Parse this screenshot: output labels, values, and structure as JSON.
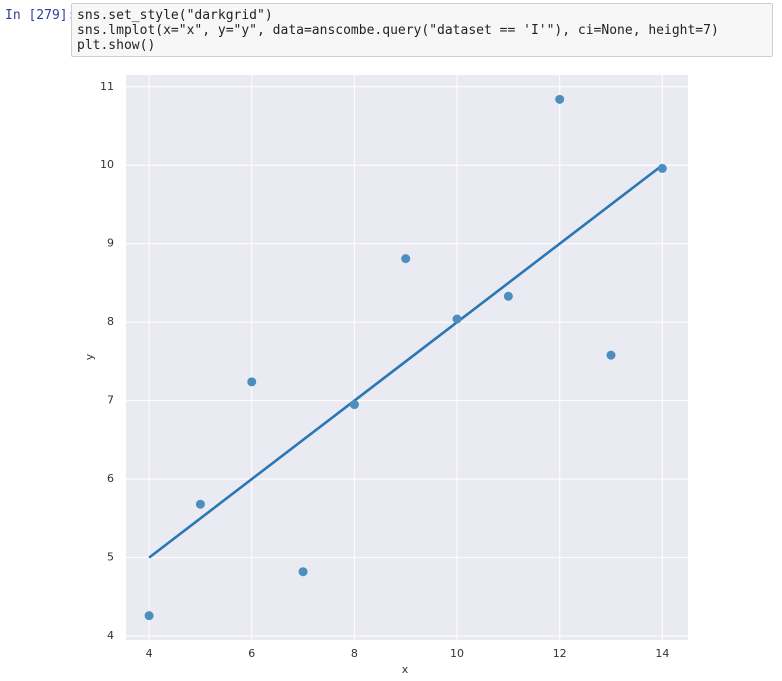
{
  "cell": {
    "prompt": "In [279]:",
    "code": [
      "sns.set_style(\"darkgrid\")",
      "sns.lmplot(x=\"x\", y=\"y\", data=anscombe.query(\"dataset == 'I'\"), ci=None, height=7)",
      "plt.show()"
    ]
  },
  "chart_data": {
    "type": "scatter",
    "x_label": "x",
    "y_label": "y",
    "x": [
      10,
      8,
      13,
      9,
      11,
      14,
      6,
      4,
      12,
      7,
      5
    ],
    "series": [
      {
        "color": "#4c8ec0",
        "values": [
          8.04,
          6.95,
          7.58,
          8.81,
          8.33,
          9.96,
          7.24,
          4.26,
          10.84,
          4.82,
          5.68
        ]
      }
    ],
    "fit": {
      "color": "#2a77b4",
      "x": [
        4,
        14
      ],
      "values": [
        5.0,
        10.0
      ]
    },
    "xlim": [
      3.55,
      14.5
    ],
    "ylim": [
      3.95,
      11.15
    ],
    "xticks": [
      4,
      6,
      8,
      10,
      12,
      14
    ],
    "yticks": [
      4,
      5,
      6,
      7,
      8,
      9,
      10,
      11
    ],
    "grid": true,
    "background": "#eaeaf2"
  }
}
